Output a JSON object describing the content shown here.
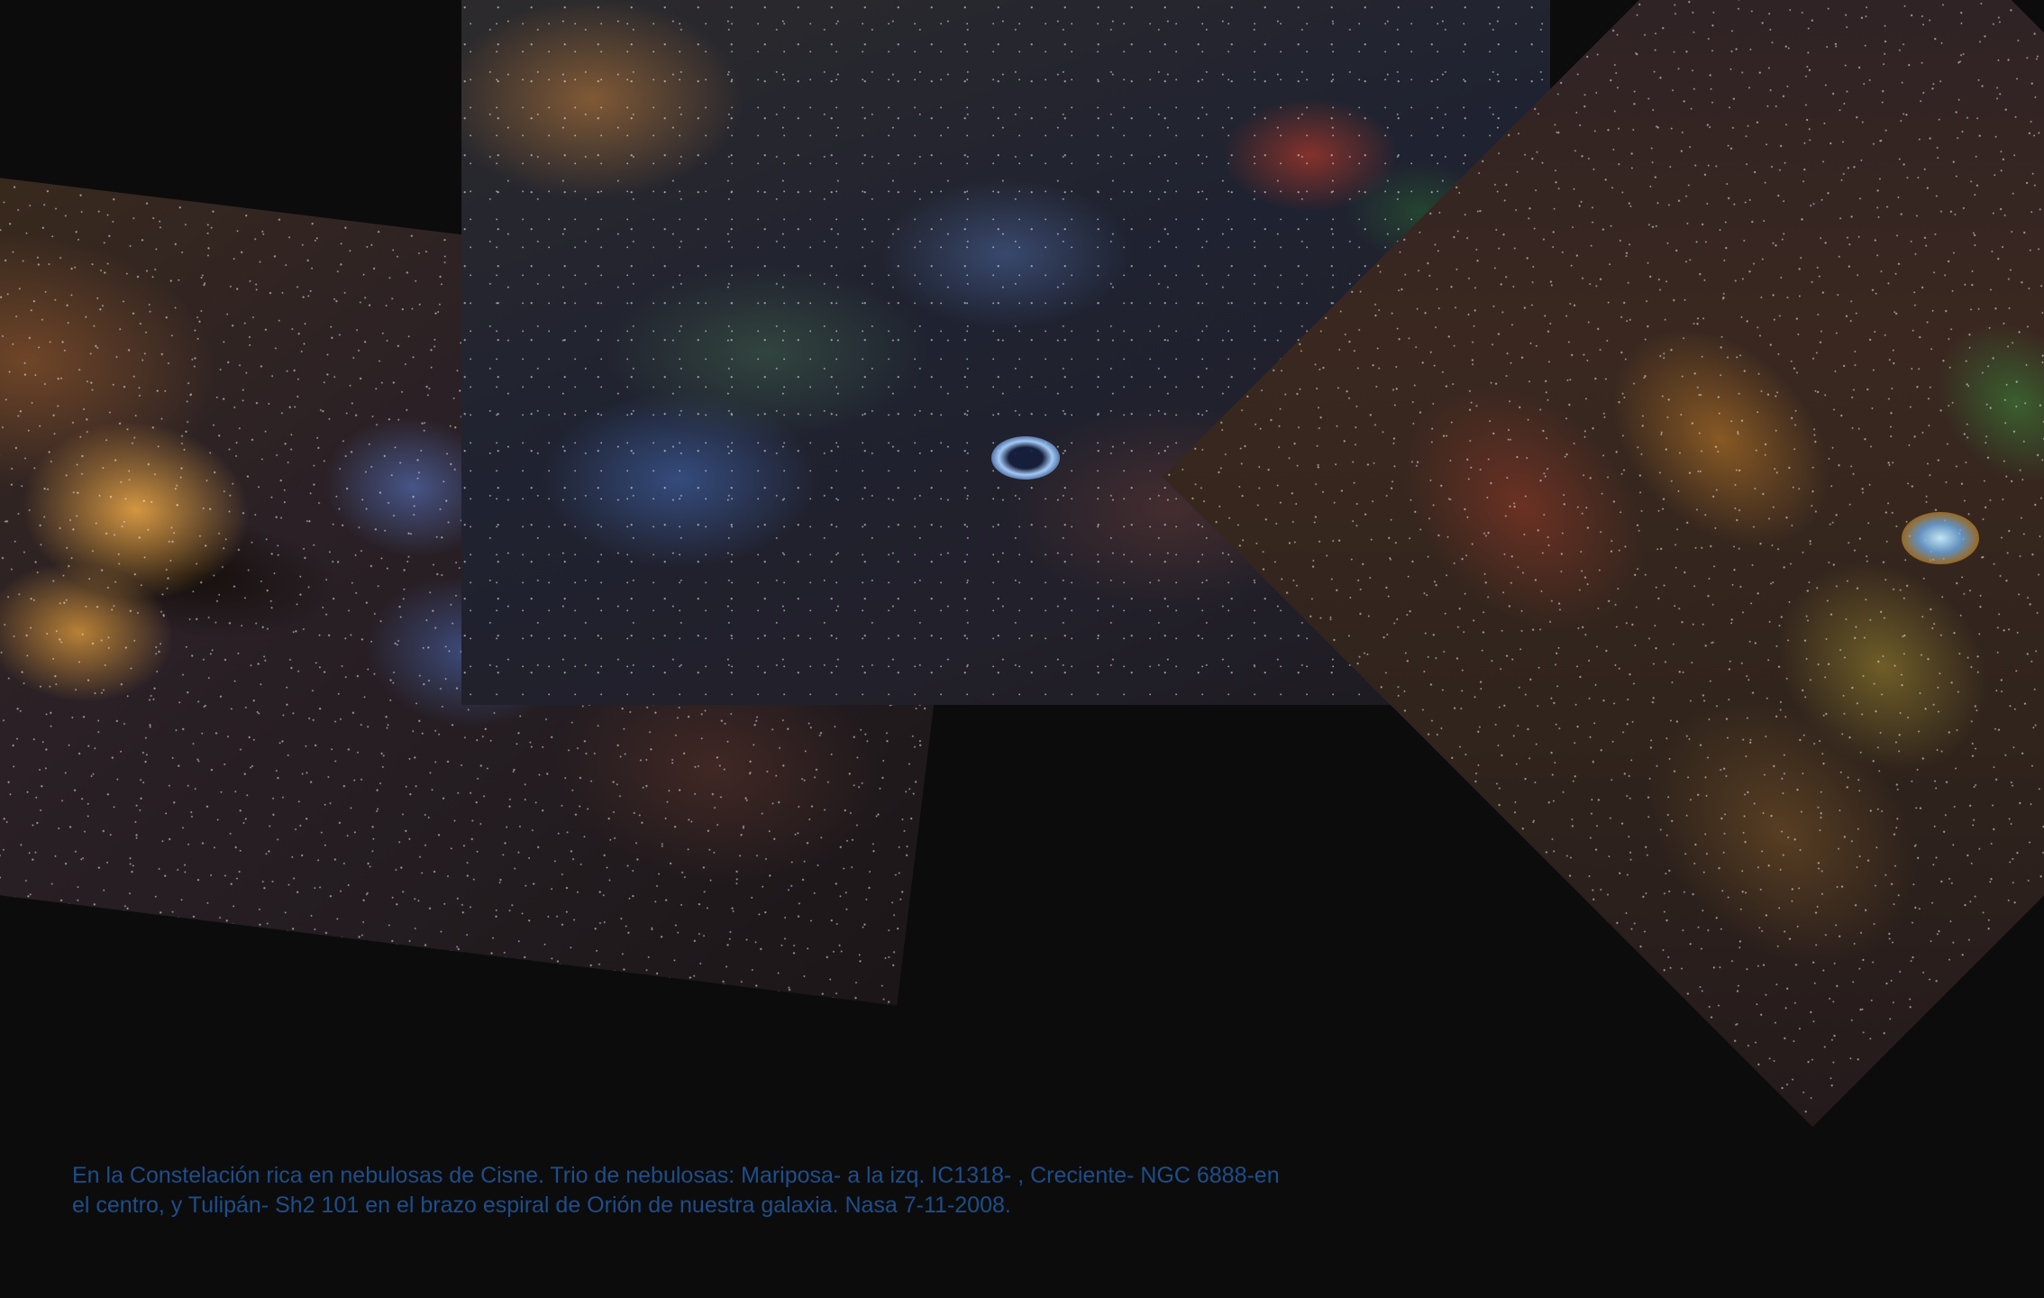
{
  "caption": {
    "text": "En la Constelación rica en nebulosas de Cisne. Trio de nebulosas: Mariposa- a la izq.  IC1318- , Creciente- NGC 6888-en el centro, y Tulipán- Sh2 101 en el brazo espiral de Orión de nuestra galaxia. Nasa 7-11-2008."
  },
  "colors": {
    "background": "#0c0c0d",
    "caption": "#1d4e8a"
  }
}
